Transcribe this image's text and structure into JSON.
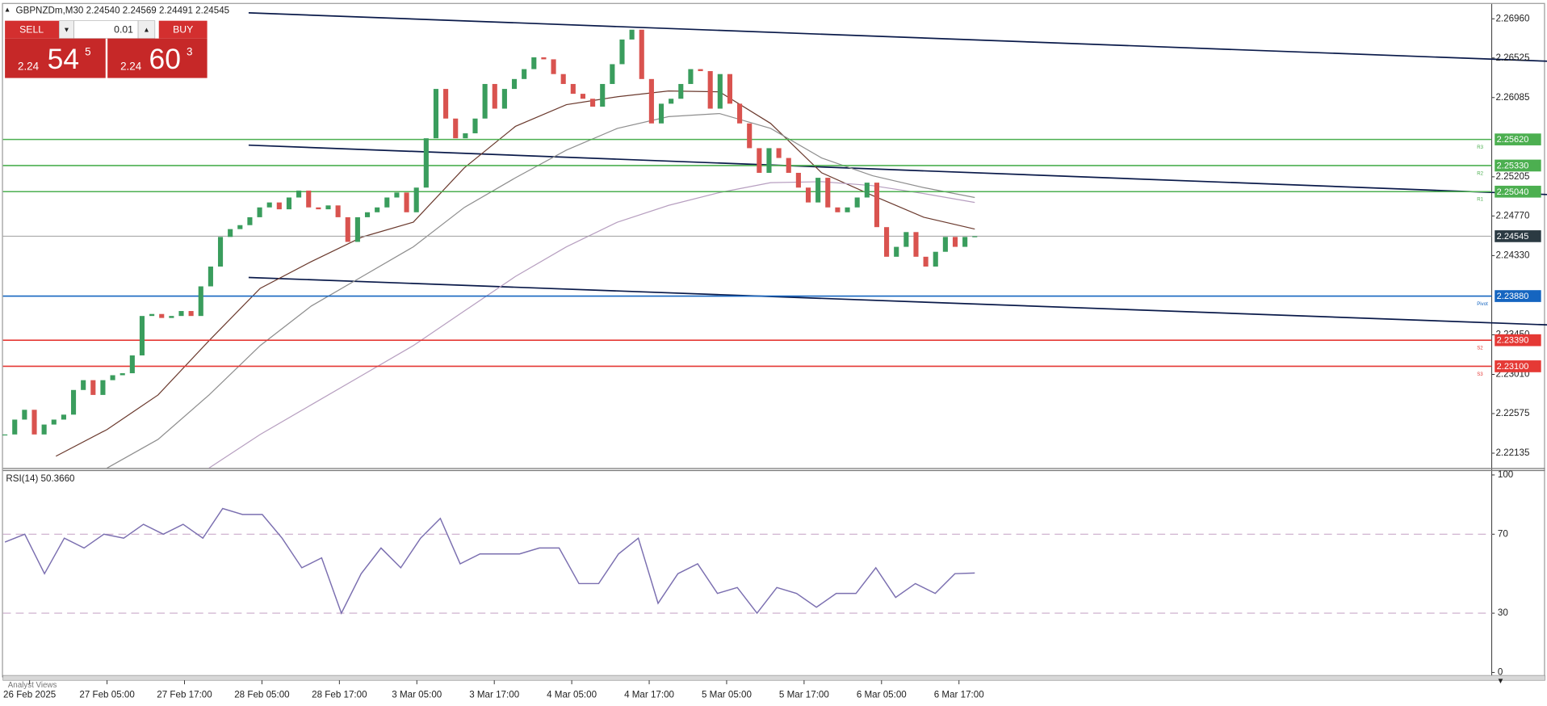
{
  "header": {
    "text": "GBPNZDm,M30  2.24540 2.24569 2.24491 2.24545"
  },
  "trade_panel": {
    "sell": "SELL",
    "buy": "BUY",
    "lot": "0.01",
    "sell_price": {
      "big": "2.24",
      "main": "54",
      "sup": "5"
    },
    "buy_price": {
      "big": "2.24",
      "main": "60",
      "sup": "3"
    }
  },
  "bottom_tab": "Analyst Views",
  "time_labels": [
    "26 Feb 2025",
    "27 Feb 05:00",
    "27 Feb 17:00",
    "28 Feb 05:00",
    "28 Feb 17:00",
    "3 Mar 05:00",
    "3 Mar 17:00",
    "4 Mar 05:00",
    "4 Mar 17:00",
    "5 Mar 05:00",
    "5 Mar 17:00",
    "6 Mar 05:00",
    "6 Mar 17:00"
  ],
  "chart_data": [
    {
      "type": "candlestick",
      "up_color": "#3a9d5d",
      "down_color": "#d9534f",
      "ylim": [
        2.2197,
        2.27114
      ],
      "yticks": [
        {
          "value": 2.2696,
          "label": "2.26960"
        },
        2.26525,
        2.26085,
        2.25205,
        {
          "value": 2.2477,
          "label": "2.24770"
        },
        {
          "value": 2.2433,
          "label": "2.24330"
        },
        {
          "value": 2.2345,
          "label": "2.23450"
        },
        {
          "value": 2.2301,
          "label": "2.23010"
        },
        2.22575,
        2.22135
      ],
      "close": [
        2.22343,
        2.22508,
        2.22617,
        2.22343,
        2.22453,
        2.22508,
        2.22563,
        2.22837,
        2.22946,
        2.22782,
        2.22946,
        2.23001,
        2.23023,
        2.23221,
        2.23659,
        2.23681,
        2.23637,
        2.23659,
        2.23714,
        2.23659,
        2.23988,
        2.24208,
        2.24537,
        2.24624,
        2.24668,
        2.24756,
        2.24865,
        2.2492,
        2.24844,
        2.24975,
        2.25052,
        2.24865,
        2.24844,
        2.24887,
        2.24756,
        2.24482,
        2.24756,
        2.24811,
        2.24865,
        2.24975,
        2.2503,
        2.24811,
        2.25085,
        2.25633,
        2.26181,
        2.25852,
        2.25633,
        2.25688,
        2.25852,
        2.26236,
        2.25962,
        2.26181,
        2.26291,
        2.26401,
        2.26532,
        2.2651,
        2.26346,
        2.26236,
        2.26127,
        2.26072,
        2.25984,
        2.26236,
        2.26456,
        2.2673,
        2.26839,
        2.26291,
        2.25798,
        2.26017,
        2.26072,
        2.26236,
        2.26401,
        2.26379,
        2.25962,
        2.26346,
        2.26017,
        2.25798,
        2.25523,
        2.25249,
        2.25523,
        2.25414,
        2.25249,
        2.25085,
        2.2492,
        2.25194,
        2.24865,
        2.24811,
        2.24865,
        2.24975,
        2.2514,
        2.24646,
        2.24317,
        2.24427,
        2.24591,
        2.24317,
        2.24208,
        2.24372,
        2.24537,
        2.24427,
        2.24537,
        2.24545
      ],
      "series": [
        {
          "color": "#6b3a2e",
          "values": [
            null,
            2.22102,
            2.22398,
            2.22782,
            2.23385,
            2.23966,
            2.24262,
            2.24537,
            2.24701,
            2.25304,
            2.25765,
            2.26006,
            2.26094,
            2.26159,
            2.26149,
            2.25798,
            2.25249,
            2.24997,
            2.24756,
            2.24624
          ]
        },
        {
          "color": "#8e8e8e",
          "values": [
            null,
            null,
            2.2197,
            2.22288,
            2.22782,
            2.2333,
            2.23769,
            2.24098,
            2.24427,
            2.24865,
            2.25194,
            2.25502,
            2.25743,
            2.25874,
            2.25907,
            2.25743,
            2.25414,
            2.25216,
            2.25085,
            2.24975
          ]
        },
        {
          "color": "#b79fc0",
          "values": [
            null,
            null,
            null,
            null,
            2.2197,
            2.22343,
            2.22672,
            2.23001,
            2.2333,
            2.23714,
            2.24098,
            2.24427,
            2.24701,
            2.24887,
            2.2503,
            2.2514,
            2.25151,
            2.25107,
            2.25019,
            2.2492
          ]
        }
      ],
      "levels": [
        {
          "name": "R3",
          "value": 2.2562,
          "label": "2.25620",
          "color": "#4caf50"
        },
        {
          "name": "R2",
          "value": 2.2533,
          "label": "2.25330",
          "color": "#4caf50"
        },
        {
          "name": "R1",
          "value": 2.2504,
          "label": "2.25040",
          "color": "#4caf50"
        },
        {
          "value": 2.24545,
          "color": "#9e9e9e",
          "box": "#2b3a42"
        },
        {
          "name": "Pivot",
          "value": 2.2388,
          "label": "2.23880",
          "color": "#1565c0"
        },
        {
          "name": "S2",
          "value": 2.2339,
          "label": "2.23390",
          "color": "#e53935"
        },
        {
          "name": "S3",
          "value": 2.231,
          "label": "2.23100",
          "color": "#e53935"
        }
      ]
    },
    {
      "type": "line",
      "title": "RSI(14) 50.3660",
      "ylim": [
        0,
        100
      ],
      "yticks": [
        100,
        70,
        30,
        0
      ],
      "dashed_levels": [
        70,
        30
      ],
      "color": "#7b6fb0",
      "values": [
        66,
        70,
        50,
        68,
        63,
        70,
        68,
        75,
        70,
        75,
        68,
        83,
        80,
        80,
        68,
        53,
        58,
        30,
        50,
        63,
        53,
        68,
        78,
        55,
        60,
        60,
        60,
        63,
        63,
        45,
        45,
        60,
        68,
        35,
        50,
        55,
        40,
        43,
        30,
        43,
        40,
        33,
        40,
        40,
        53,
        38,
        45,
        40,
        50,
        50.37
      ]
    }
  ]
}
